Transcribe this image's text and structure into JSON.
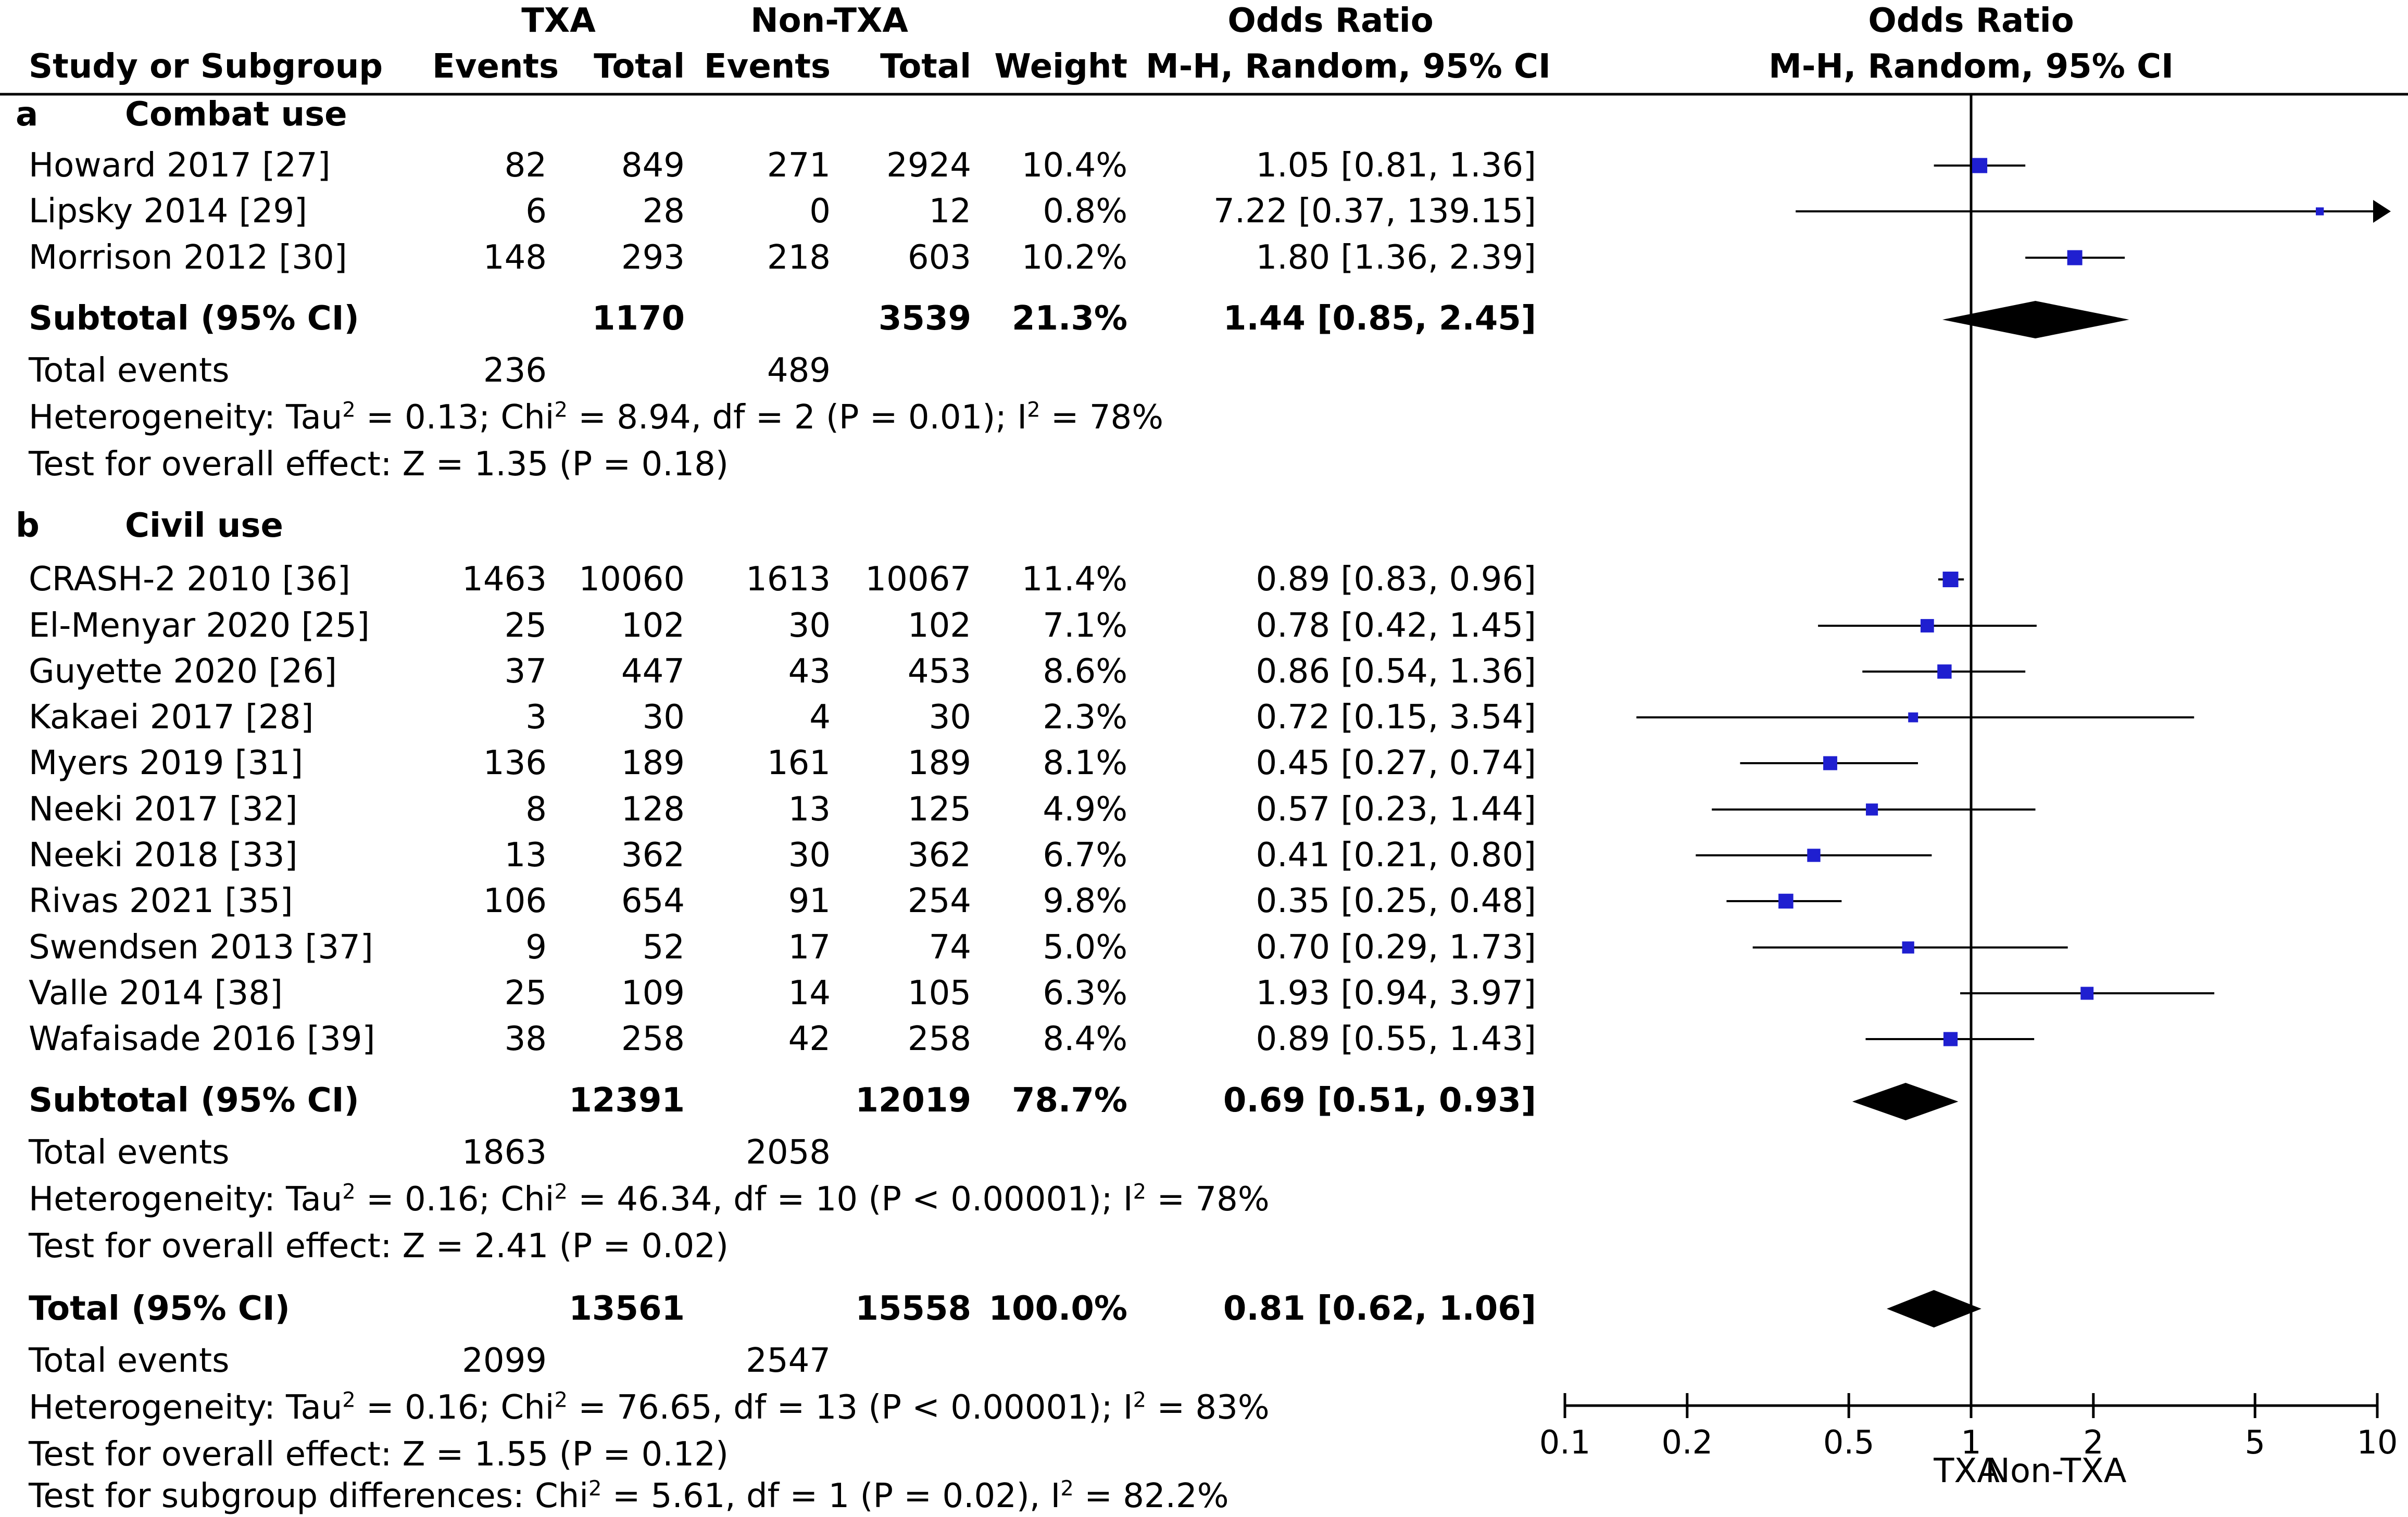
{
  "headers": {
    "group_txa": "TXA",
    "group_nontxa": "Non-TXA",
    "group_or_table": "Odds Ratio",
    "group_or_plot": "Odds Ratio",
    "study": "Study or Subgroup",
    "txa_events": "Events",
    "txa_total": "Total",
    "non_events": "Events",
    "non_total": "Total",
    "weight": "Weight",
    "or_method": "M-H, Random, 95% CI",
    "plot_method": "M-H, Random, 95% CI"
  },
  "subgroups": [
    {
      "letter": "a",
      "name": "Combat use",
      "studies": [
        {
          "name": "Howard 2017 [27]",
          "txa_events": "82",
          "txa_total": "849",
          "non_events": "271",
          "non_total": "2924",
          "weight": "10.4%",
          "ci_text": "1.05 [0.81, 1.36]"
        },
        {
          "name": "Lipsky 2014 [29]",
          "txa_events": "6",
          "txa_total": "28",
          "non_events": "0",
          "non_total": "12",
          "weight": "0.8%",
          "ci_text": "7.22 [0.37, 139.15]"
        },
        {
          "name": "Morrison 2012 [30]",
          "txa_events": "148",
          "txa_total": "293",
          "non_events": "218",
          "non_total": "603",
          "weight": "10.2%",
          "ci_text": "1.80 [1.36, 2.39]"
        }
      ],
      "subtotal": {
        "label": "Subtotal (95% CI)",
        "txa_total": "1170",
        "non_total": "3539",
        "weight": "21.3%",
        "ci_text": "1.44 [0.85, 2.45]"
      },
      "total_events": {
        "label": "Total events",
        "txa": "236",
        "non": "489"
      },
      "heterogeneity": {
        "tau_prefix": "Heterogeneity: Tau",
        "chi_prefix": " = 0.13; Chi",
        "mid": " = 8.94, df = 2 (P = 0.01); I",
        "end": " = 78%"
      },
      "overall_effect": "Test for overall effect: Z = 1.35 (P = 0.18)"
    },
    {
      "letter": "b",
      "name": "Civil use",
      "studies": [
        {
          "name": "CRASH-2 2010 [36]",
          "txa_events": "1463",
          "txa_total": "10060",
          "non_events": "1613",
          "non_total": "10067",
          "weight": "11.4%",
          "ci_text": "0.89 [0.83, 0.96]"
        },
        {
          "name": "El-Menyar 2020 [25]",
          "txa_events": "25",
          "txa_total": "102",
          "non_events": "30",
          "non_total": "102",
          "weight": "7.1%",
          "ci_text": "0.78 [0.42, 1.45]"
        },
        {
          "name": "Guyette 2020 [26]",
          "txa_events": "37",
          "txa_total": "447",
          "non_events": "43",
          "non_total": "453",
          "weight": "8.6%",
          "ci_text": "0.86 [0.54, 1.36]"
        },
        {
          "name": "Kakaei 2017 [28]",
          "txa_events": "3",
          "txa_total": "30",
          "non_events": "4",
          "non_total": "30",
          "weight": "2.3%",
          "ci_text": "0.72 [0.15, 3.54]"
        },
        {
          "name": "Myers 2019 [31]",
          "txa_events": "136",
          "txa_total": "189",
          "non_events": "161",
          "non_total": "189",
          "weight": "8.1%",
          "ci_text": "0.45 [0.27, 0.74]"
        },
        {
          "name": "Neeki 2017 [32]",
          "txa_events": "8",
          "txa_total": "128",
          "non_events": "13",
          "non_total": "125",
          "weight": "4.9%",
          "ci_text": "0.57 [0.23, 1.44]"
        },
        {
          "name": "Neeki 2018 [33]",
          "txa_events": "13",
          "txa_total": "362",
          "non_events": "30",
          "non_total": "362",
          "weight": "6.7%",
          "ci_text": "0.41 [0.21, 0.80]"
        },
        {
          "name": "Rivas 2021 [35]",
          "txa_events": "106",
          "txa_total": "654",
          "non_events": "91",
          "non_total": "254",
          "weight": "9.8%",
          "ci_text": "0.35 [0.25, 0.48]"
        },
        {
          "name": "Swendsen 2013 [37]",
          "txa_events": "9",
          "txa_total": "52",
          "non_events": "17",
          "non_total": "74",
          "weight": "5.0%",
          "ci_text": "0.70 [0.29, 1.73]"
        },
        {
          "name": "Valle 2014 [38]",
          "txa_events": "25",
          "txa_total": "109",
          "non_events": "14",
          "non_total": "105",
          "weight": "6.3%",
          "ci_text": "1.93 [0.94, 3.97]"
        },
        {
          "name": "Wafaisade 2016 [39]",
          "txa_events": "38",
          "txa_total": "258",
          "non_events": "42",
          "non_total": "258",
          "weight": "8.4%",
          "ci_text": "0.89 [0.55, 1.43]"
        }
      ],
      "subtotal": {
        "label": "Subtotal (95% CI)",
        "txa_total": "12391",
        "non_total": "12019",
        "weight": "78.7%",
        "ci_text": "0.69 [0.51, 0.93]"
      },
      "total_events": {
        "label": "Total events",
        "txa": "1863",
        "non": "2058"
      },
      "heterogeneity": {
        "tau_prefix": "Heterogeneity: Tau",
        "chi_prefix": " = 0.16; Chi",
        "mid": " = 46.34, df = 10 (P < 0.00001); I",
        "end": " = 78%"
      },
      "overall_effect": "Test for overall effect: Z = 2.41 (P = 0.02)"
    }
  ],
  "total": {
    "label": "Total (95% CI)",
    "txa_total": "13561",
    "non_total": "15558",
    "weight": "100.0%",
    "ci_text": "0.81 [0.62, 1.06]",
    "total_events": {
      "label": "Total events",
      "txa": "2099",
      "non": "2547"
    },
    "heterogeneity": {
      "tau_prefix": "Heterogeneity: Tau",
      "chi_prefix": " = 0.16; Chi",
      "mid": " = 76.65, df = 13 (P < 0.00001); I",
      "end": " = 83%"
    },
    "overall_effect": "Test for overall effect: Z = 1.55 (P = 0.12)",
    "subgroup_diff": {
      "prefix": "Test for subgroup differences: Chi",
      "mid": " = 5.61, df = 1 (P = 0.02), I",
      "end": " = 82.2%"
    }
  },
  "superscript": "2",
  "axis_footer": {
    "left": "TXA",
    "right": "Non-TXA"
  },
  "colors": {
    "marker": "#1f1fd0",
    "diamond": "#000000",
    "line": "#000000"
  },
  "chart_data": {
    "type": "forest",
    "title": "Odds Ratio",
    "xlabel": "M-H, Random, 95% CI",
    "xscale": "log",
    "xlim": [
      0.1,
      10
    ],
    "ticks": [
      0.1,
      0.2,
      0.5,
      1,
      2,
      5,
      10
    ],
    "tick_labels": [
      "0.1",
      "0.2",
      "0.5",
      "1",
      "2",
      "5",
      "10"
    ],
    "reference_line": 1,
    "series": [
      {
        "group": "a",
        "study": "Howard 2017 [27]",
        "or": 1.05,
        "lo": 0.81,
        "hi": 1.36,
        "weight": 10.4
      },
      {
        "group": "a",
        "study": "Lipsky 2014 [29]",
        "or": 7.22,
        "lo": 0.37,
        "hi": 139.15,
        "weight": 0.8
      },
      {
        "group": "a",
        "study": "Morrison 2012 [30]",
        "or": 1.8,
        "lo": 1.36,
        "hi": 2.39,
        "weight": 10.2
      },
      {
        "group": "b",
        "study": "CRASH-2 2010 [36]",
        "or": 0.89,
        "lo": 0.83,
        "hi": 0.96,
        "weight": 11.4
      },
      {
        "group": "b",
        "study": "El-Menyar 2020 [25]",
        "or": 0.78,
        "lo": 0.42,
        "hi": 1.45,
        "weight": 7.1
      },
      {
        "group": "b",
        "study": "Guyette 2020 [26]",
        "or": 0.86,
        "lo": 0.54,
        "hi": 1.36,
        "weight": 8.6
      },
      {
        "group": "b",
        "study": "Kakaei 2017 [28]",
        "or": 0.72,
        "lo": 0.15,
        "hi": 3.54,
        "weight": 2.3
      },
      {
        "group": "b",
        "study": "Myers 2019 [31]",
        "or": 0.45,
        "lo": 0.27,
        "hi": 0.74,
        "weight": 8.1
      },
      {
        "group": "b",
        "study": "Neeki 2017 [32]",
        "or": 0.57,
        "lo": 0.23,
        "hi": 1.44,
        "weight": 4.9
      },
      {
        "group": "b",
        "study": "Neeki 2018 [33]",
        "or": 0.41,
        "lo": 0.21,
        "hi": 0.8,
        "weight": 6.7
      },
      {
        "group": "b",
        "study": "Rivas 2021 [35]",
        "or": 0.35,
        "lo": 0.25,
        "hi": 0.48,
        "weight": 9.8
      },
      {
        "group": "b",
        "study": "Swendsen 2013 [37]",
        "or": 0.7,
        "lo": 0.29,
        "hi": 1.73,
        "weight": 5.0
      },
      {
        "group": "b",
        "study": "Valle 2014 [38]",
        "or": 1.93,
        "lo": 0.94,
        "hi": 3.97,
        "weight": 6.3
      },
      {
        "group": "b",
        "study": "Wafaisade 2016 [39]",
        "or": 0.89,
        "lo": 0.55,
        "hi": 1.43,
        "weight": 8.4
      }
    ],
    "diamonds": [
      {
        "name": "Subtotal a",
        "or": 1.44,
        "lo": 0.85,
        "hi": 2.45
      },
      {
        "name": "Subtotal b",
        "or": 0.69,
        "lo": 0.51,
        "hi": 0.93
      },
      {
        "name": "Total",
        "or": 0.81,
        "lo": 0.62,
        "hi": 1.06
      }
    ]
  }
}
